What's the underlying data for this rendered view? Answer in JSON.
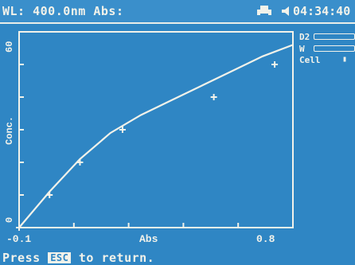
{
  "header": {
    "wavelength_label": "WL: 400.0nm Abs:",
    "time": "04:34:40",
    "printer_icon": "printer-icon",
    "speaker_icon": "speaker-icon"
  },
  "side_panel": {
    "d2_label": "D2",
    "w_label": "W",
    "cell_label": "Cell"
  },
  "footer": {
    "prefix": "Press",
    "key": "ESC",
    "suffix": "to return."
  },
  "chart_data": {
    "type": "scatter",
    "xlabel": "Abs",
    "ylabel": "Conc.",
    "xlim": [
      -0.1,
      0.8
    ],
    "ylim": [
      0,
      60
    ],
    "x_tick_labels": [
      "-0.1",
      "0.8"
    ],
    "y_tick_labels": [
      "0",
      "60"
    ],
    "points": [
      {
        "x": -0.1,
        "y": 0
      },
      {
        "x": 0.0,
        "y": 10
      },
      {
        "x": 0.1,
        "y": 20
      },
      {
        "x": 0.24,
        "y": 30
      },
      {
        "x": 0.54,
        "y": 40
      },
      {
        "x": 0.74,
        "y": 50
      }
    ],
    "fit_curve": [
      {
        "x": -0.1,
        "y": 0
      },
      {
        "x": 0.0,
        "y": 11
      },
      {
        "x": 0.1,
        "y": 21
      },
      {
        "x": 0.2,
        "y": 29
      },
      {
        "x": 0.3,
        "y": 34.5
      },
      {
        "x": 0.4,
        "y": 39
      },
      {
        "x": 0.5,
        "y": 43.5
      },
      {
        "x": 0.6,
        "y": 48
      },
      {
        "x": 0.7,
        "y": 52.5
      },
      {
        "x": 0.8,
        "y": 56
      }
    ]
  }
}
